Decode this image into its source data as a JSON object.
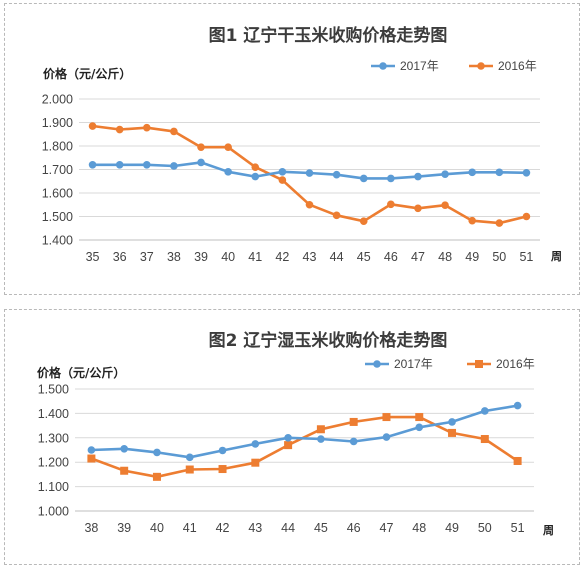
{
  "chart_data": [
    {
      "type": "line",
      "title": "图1 辽宁干玉米收购价格走势图",
      "ylabel": "价格（元/公斤）",
      "xlabel": "周",
      "ylim": [
        1.4,
        2.0
      ],
      "ytick_step": 0.1,
      "yticks": [
        "1.400",
        "1.500",
        "1.600",
        "1.700",
        "1.800",
        "1.900",
        "2.000"
      ],
      "categories": [
        "35",
        "36",
        "37",
        "38",
        "39",
        "40",
        "41",
        "42",
        "43",
        "44",
        "45",
        "46",
        "47",
        "48",
        "49",
        "50",
        "51"
      ],
      "grid": "horizontal",
      "legend": "top-right",
      "series": [
        {
          "name": "2017年",
          "color": "#5b9bd5",
          "marker": "circle",
          "values": [
            1.72,
            1.72,
            1.72,
            1.715,
            1.73,
            1.69,
            1.67,
            1.69,
            1.685,
            1.678,
            1.662,
            1.662,
            1.67,
            1.68,
            1.688,
            1.688,
            1.686
          ]
        },
        {
          "name": "2016年",
          "color": "#ed7d31",
          "marker": "circle",
          "values": [
            1.885,
            1.87,
            1.878,
            1.862,
            1.795,
            1.795,
            1.71,
            1.655,
            1.55,
            1.505,
            1.48,
            1.552,
            1.535,
            1.548,
            1.482,
            1.472,
            1.5
          ]
        }
      ]
    },
    {
      "type": "line",
      "title": "图2 辽宁湿玉米收购价格走势图",
      "ylabel": "价格（元/公斤）",
      "xlabel": "周",
      "ylim": [
        1.0,
        1.5
      ],
      "ytick_step": 0.1,
      "yticks": [
        "1.000",
        "1.100",
        "1.200",
        "1.300",
        "1.400",
        "1.500"
      ],
      "categories": [
        "38",
        "39",
        "40",
        "41",
        "42",
        "43",
        "44",
        "45",
        "46",
        "47",
        "48",
        "49",
        "50",
        "51"
      ],
      "grid": "horizontal",
      "legend": "top-right",
      "series": [
        {
          "name": "2017年",
          "color": "#5b9bd5",
          "marker": "circle",
          "values": [
            1.25,
            1.255,
            1.24,
            1.22,
            1.248,
            1.275,
            1.3,
            1.295,
            1.285,
            1.303,
            1.343,
            1.365,
            1.41,
            1.432
          ]
        },
        {
          "name": "2016年",
          "color": "#ed7d31",
          "marker": "square",
          "values": [
            1.215,
            1.165,
            1.14,
            1.17,
            1.172,
            1.198,
            1.27,
            1.335,
            1.365,
            1.385,
            1.385,
            1.32,
            1.295,
            1.205
          ]
        }
      ]
    }
  ]
}
